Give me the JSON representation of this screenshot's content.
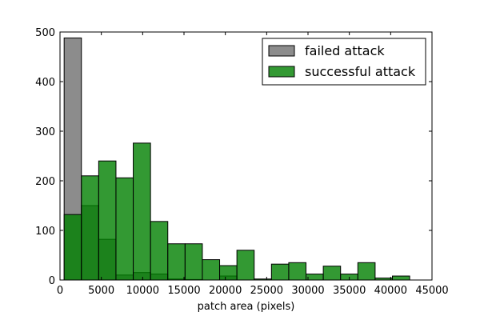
{
  "chart_data": {
    "type": "bar",
    "subtype": "overlapping-histogram",
    "title": "",
    "xlabel": "patch area (pixels)",
    "ylabel": "",
    "xlim": [
      0,
      45000
    ],
    "ylim": [
      0,
      500
    ],
    "x_ticks": [
      0,
      5000,
      10000,
      15000,
      20000,
      25000,
      30000,
      35000,
      40000,
      45000
    ],
    "y_ticks": [
      0,
      100,
      200,
      300,
      400,
      500
    ],
    "grid": false,
    "legend_position": "top-right",
    "bin_width": 2090,
    "bin_start": 500,
    "series": [
      {
        "name": "failed attack",
        "color": "#8c8c8c",
        "opacity": 1.0,
        "values": [
          488,
          150,
          82,
          10,
          15,
          12,
          2,
          1,
          0,
          8,
          0,
          0,
          0,
          0,
          0,
          0,
          0,
          0,
          0,
          0
        ]
      },
      {
        "name": "successful attack",
        "color": "#008000",
        "opacity": 0.8,
        "values": [
          132,
          210,
          240,
          206,
          276,
          118,
          73,
          73,
          41,
          29,
          60,
          2,
          32,
          35,
          12,
          28,
          12,
          35,
          4,
          8
        ]
      }
    ]
  }
}
